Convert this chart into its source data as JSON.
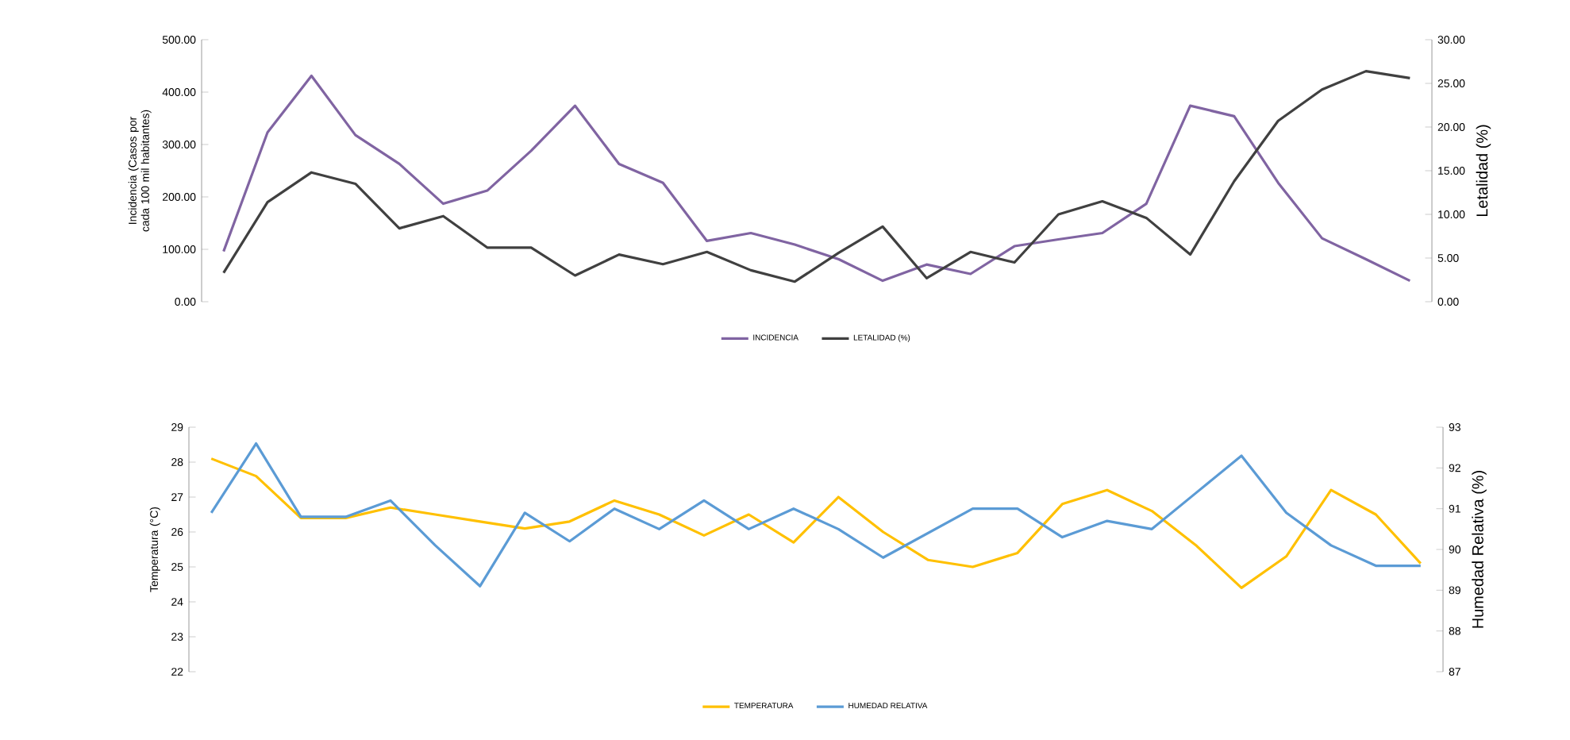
{
  "chart_data": [
    {
      "type": "line",
      "categories": [
        null,
        null,
        null,
        null,
        null,
        null,
        null,
        null,
        null,
        null,
        null,
        null,
        null,
        null,
        null,
        null,
        null,
        null,
        null,
        null,
        null,
        null,
        null,
        null,
        null,
        null,
        null,
        null
      ],
      "series": [
        {
          "name": "INCIDENCIA",
          "color": "#8064a2",
          "axis": "y",
          "values": [
            96,
            323,
            431,
            318,
            263,
            187,
            212,
            288,
            374,
            263,
            227,
            116,
            131,
            109,
            81,
            40,
            71,
            53,
            106,
            119,
            131,
            187,
            374,
            354,
            227,
            121,
            81,
            40
          ]
        },
        {
          "name": "LETALIDAD (%)",
          "color": "#404040",
          "axis": "y2",
          "values": [
            3.3,
            11.4,
            14.8,
            13.5,
            8.4,
            9.8,
            6.2,
            6.2,
            3.0,
            5.4,
            4.3,
            5.7,
            3.6,
            2.3,
            5.6,
            8.6,
            2.7,
            5.7,
            4.5,
            10.0,
            11.5,
            9.6,
            5.4,
            13.8,
            20.7,
            24.3,
            26.4,
            25.6
          ]
        }
      ],
      "ylabel": "Incidencia (Casos por cada 100 mil habitantes)",
      "y2label": "Letalidad (%)",
      "ylim": [
        0,
        500
      ],
      "yticks": [
        {
          "value": 0,
          "label": "0.00"
        },
        {
          "value": 100,
          "label": "100.00"
        },
        {
          "value": 200,
          "label": "200.00"
        },
        {
          "value": 300,
          "label": "300.00"
        },
        {
          "value": 400,
          "label": "400.00"
        },
        {
          "value": 500,
          "label": "500.00"
        }
      ],
      "y2lim": [
        0,
        30
      ],
      "y2ticks": [
        {
          "value": 0,
          "label": "0.00"
        },
        {
          "value": 5,
          "label": "5.00"
        },
        {
          "value": 10,
          "label": "10.00"
        },
        {
          "value": 15,
          "label": "15.00"
        },
        {
          "value": 20,
          "label": "20.00"
        },
        {
          "value": 25,
          "label": "25.00"
        },
        {
          "value": 30,
          "label": "30.00"
        }
      ],
      "legend": "bottom"
    },
    {
      "type": "line",
      "categories": [
        null,
        null,
        null,
        null,
        null,
        null,
        null,
        null,
        null,
        null,
        null,
        null,
        null,
        null,
        null,
        null,
        null,
        null,
        null,
        null,
        null,
        null,
        null,
        null,
        null,
        null,
        null,
        null
      ],
      "series": [
        {
          "name": "TEMPERATURA",
          "color": "#ffc000",
          "axis": "y",
          "values": [
            28.1,
            27.6,
            26.4,
            26.4,
            26.7,
            26.5,
            26.3,
            26.1,
            26.3,
            26.9,
            26.5,
            25.9,
            26.5,
            25.7,
            27.0,
            26.0,
            25.2,
            25.0,
            25.4,
            26.8,
            27.2,
            26.6,
            25.6,
            24.4,
            25.3,
            27.2,
            26.5,
            25.1
          ]
        },
        {
          "name": "HUMEDAD RELATIVA",
          "color": "#5b9bd5",
          "axis": "y2",
          "values": [
            90.9,
            92.6,
            90.8,
            90.8,
            91.2,
            90.1,
            89.1,
            90.9,
            90.2,
            91.0,
            90.5,
            91.2,
            90.5,
            91.0,
            90.5,
            89.8,
            90.4,
            91.0,
            91.0,
            90.3,
            90.7,
            90.5,
            91.4,
            92.3,
            90.9,
            90.1,
            89.6,
            89.6
          ]
        }
      ],
      "ylabel": "Temperatura (°C)",
      "y2label": "Humedad Relativa (%)",
      "ylim": [
        22,
        29
      ],
      "yticks": [
        22,
        23,
        24,
        25,
        26,
        27,
        28,
        29
      ],
      "y2lim": [
        87,
        93
      ],
      "y2ticks": [
        87,
        88,
        89,
        90,
        91,
        92,
        93
      ],
      "legend": "bottom"
    }
  ]
}
